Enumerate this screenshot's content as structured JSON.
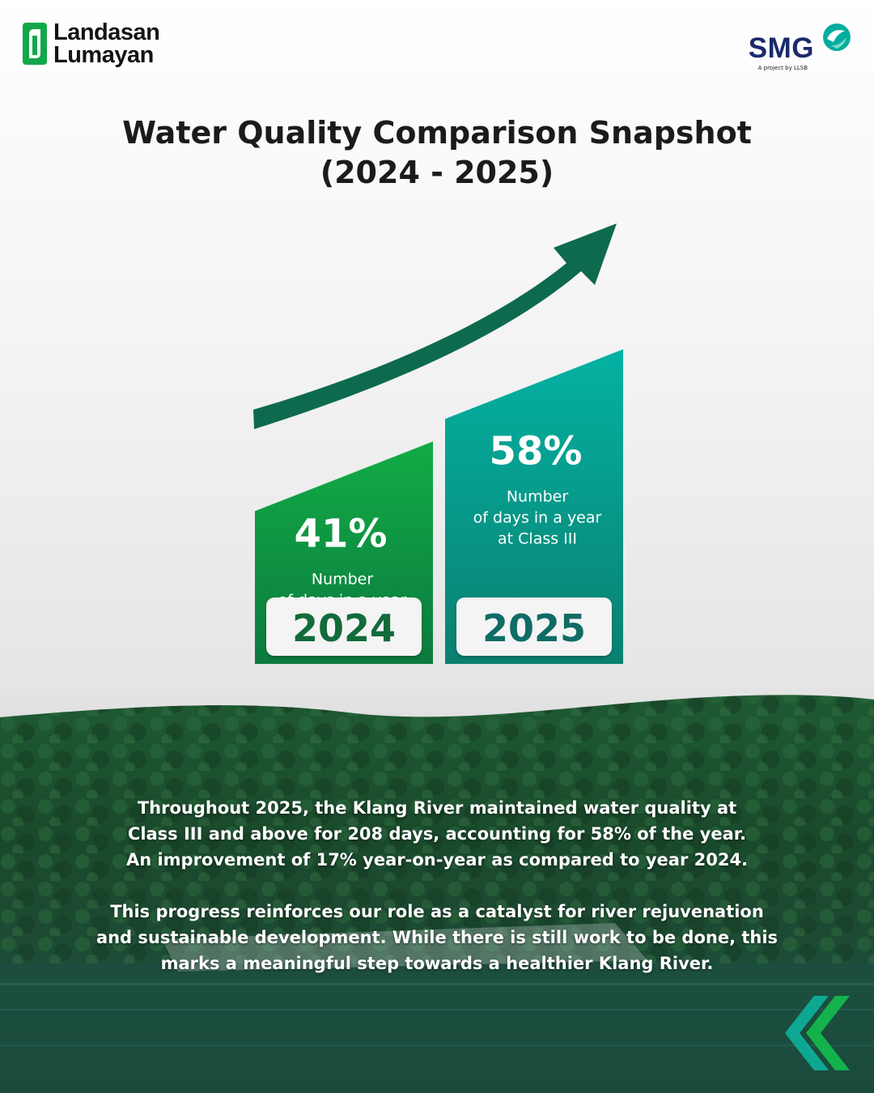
{
  "brand": {
    "left_logo_line1": "Landasan",
    "left_logo_line2": "Lumayan",
    "right_logo": "SMG",
    "right_logo_tagline": "A project by LLSB"
  },
  "title_line1": "Water Quality Comparison Snapshot",
  "title_line2": "(2024 - 2025)",
  "chart_data": {
    "type": "bar",
    "title": "Water Quality Comparison Snapshot (2024 - 2025)",
    "categories": [
      "2024",
      "2025"
    ],
    "values": [
      41,
      58
    ],
    "value_labels": [
      "41%",
      "58%"
    ],
    "unit": "%",
    "bar_description": [
      "Number",
      "of days in a year",
      "at Class III"
    ],
    "trend_arrow": "up",
    "colors": {
      "2024": "#11a84a",
      "2025": "#04ad9f",
      "arrow": "#0e6a4e",
      "year_text_2024": "#116b3b",
      "year_text_2025": "#0f6c64"
    }
  },
  "body": {
    "paragraph1": "Throughout 2025, the Klang River maintained water quality at\nClass III and above for 208 days, accounting for 58% of the year.\nAn improvement of 17% year-on-year as compared to year 2024.",
    "paragraph2": "This progress reinforces our role as a catalyst for river rejuvenation\nand sustainable development. While there is still work to be done, this\nmarks a meaningful step towards a healthier Klang River."
  },
  "icons": [
    "landasan-lumayan-logo-icon",
    "smg-swirl-icon",
    "trend-arrow-icon",
    "double-chevron-icon"
  ],
  "colors": {
    "dark_green": "#0e6a4e",
    "teal": "#04ad9f",
    "green": "#11a84a",
    "forest": "#1a3d28",
    "title": "#1b1b1b"
  }
}
